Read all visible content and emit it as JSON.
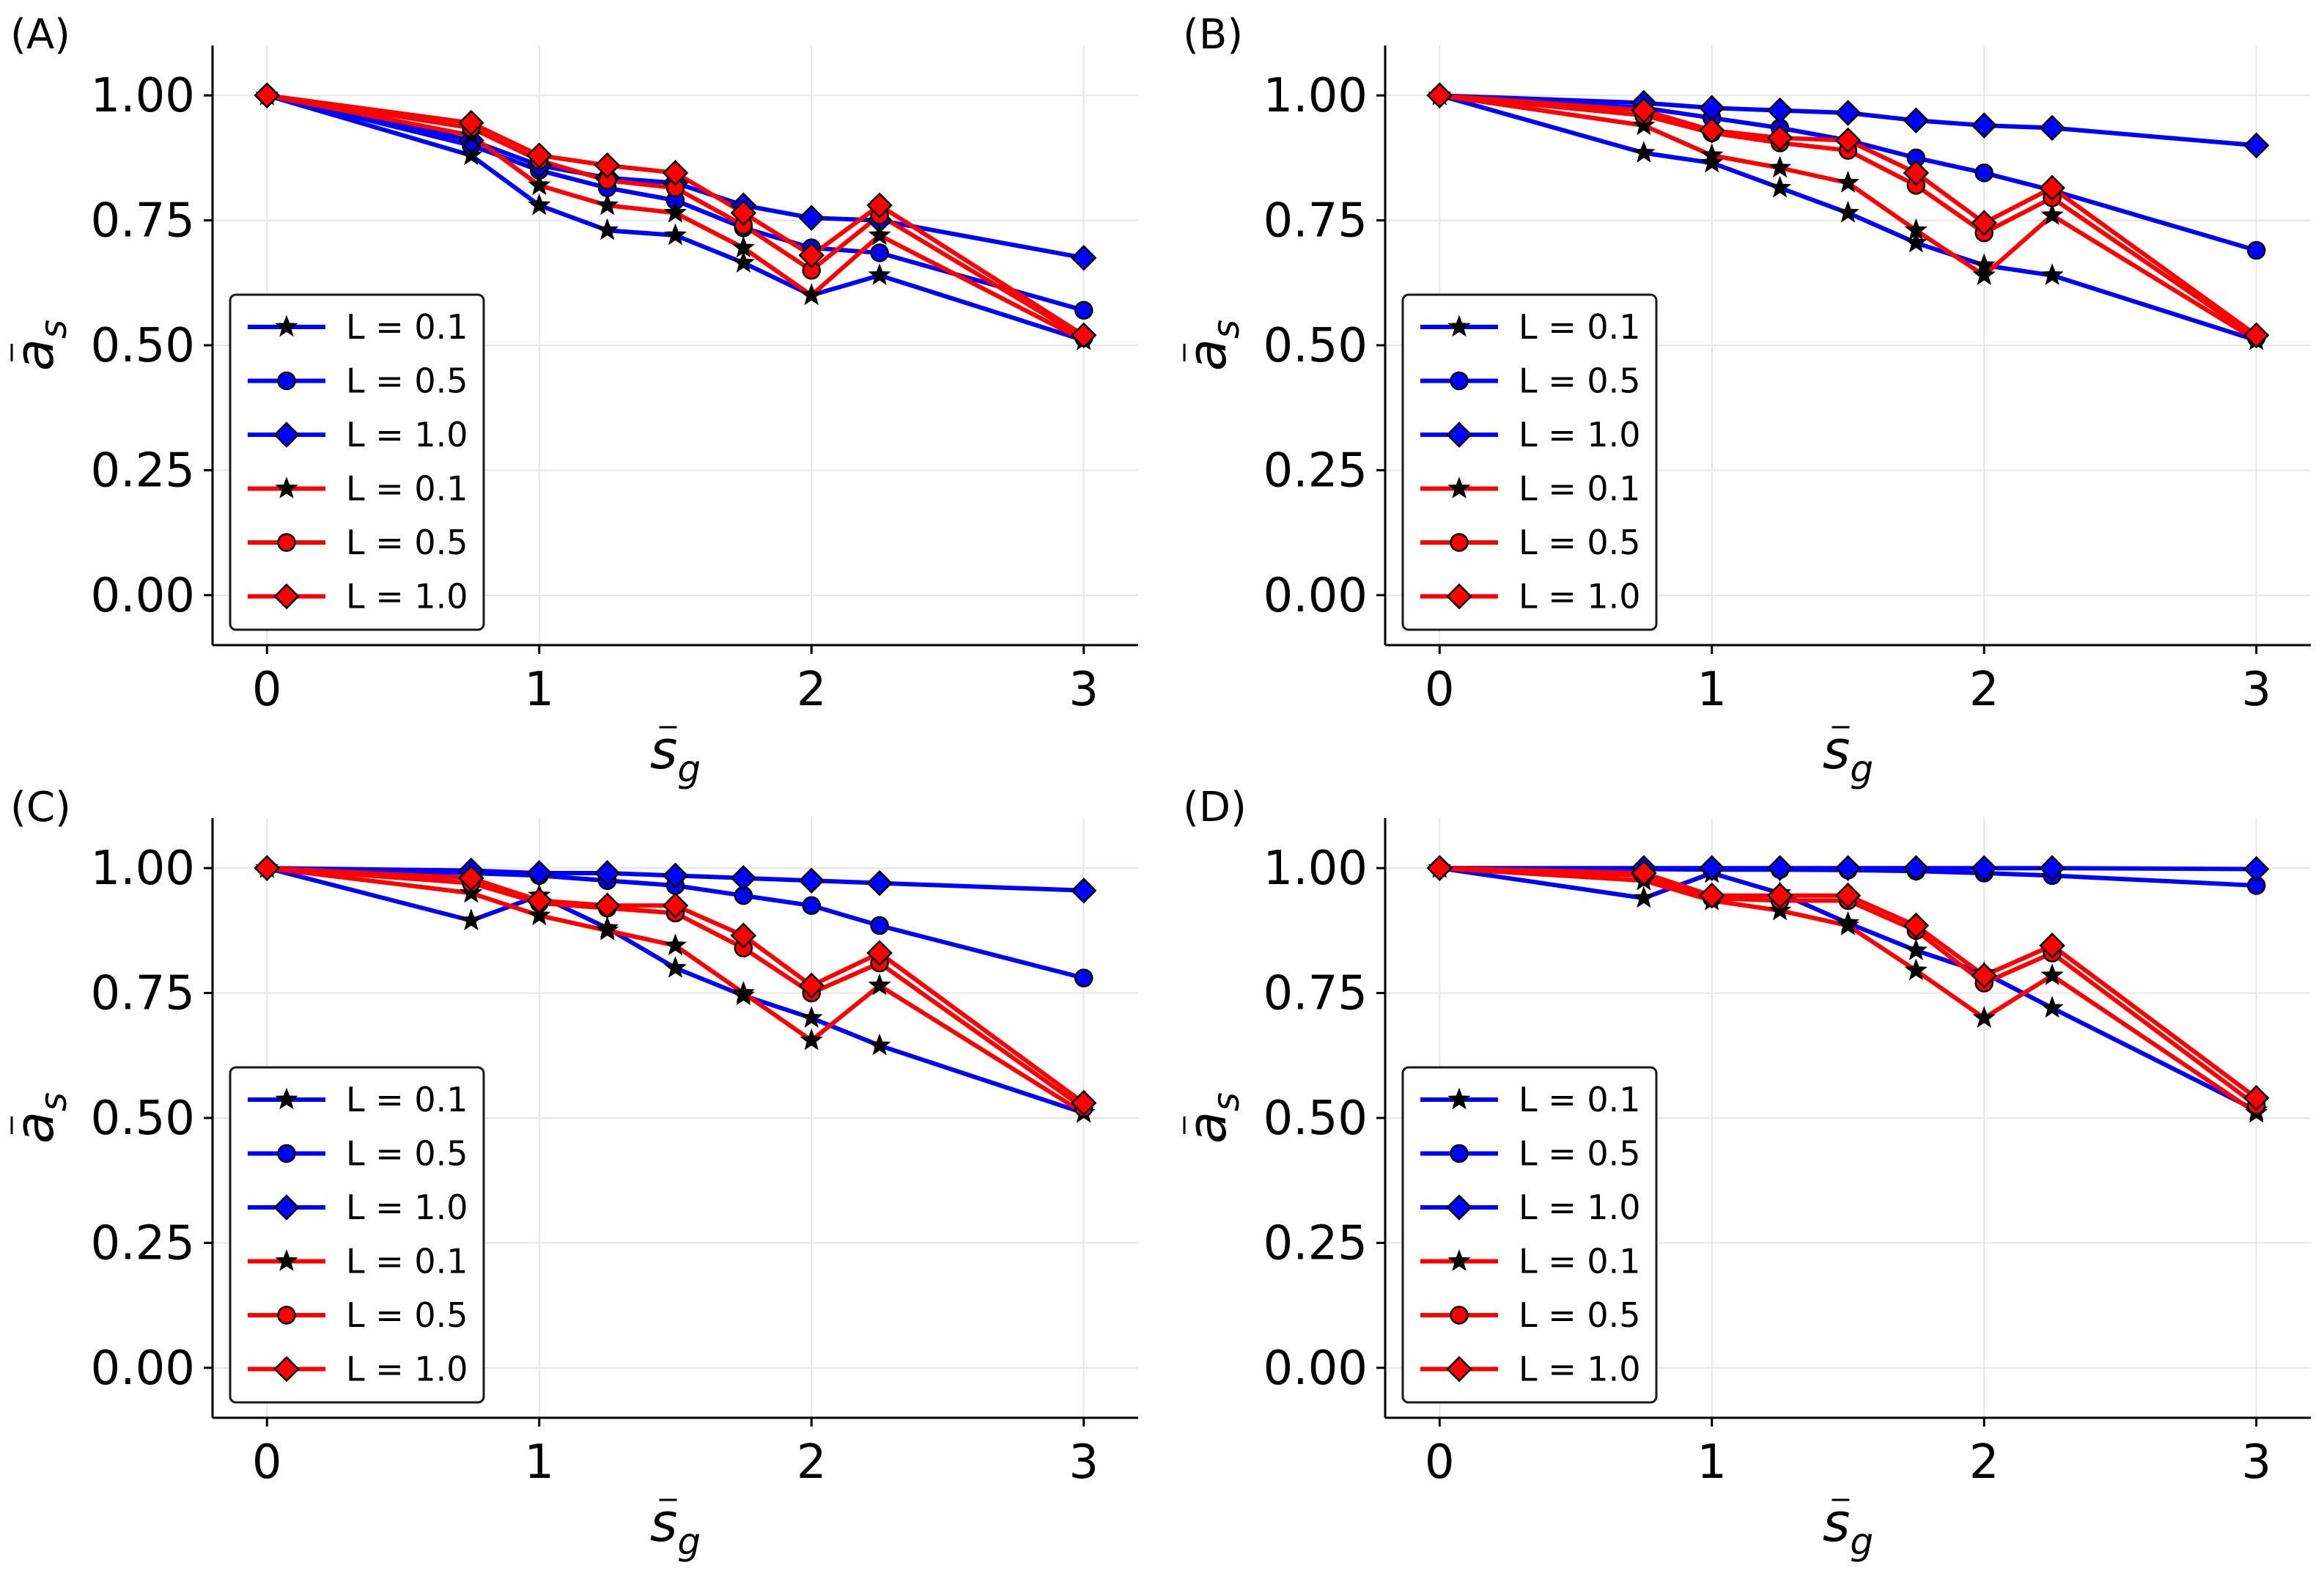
{
  "figure": {
    "colors": {
      "blue": "#0000ff",
      "red": "#ff0000",
      "grid": "#e6e6e6",
      "axis": "#000000",
      "legend_border": "#1a1a1a"
    }
  },
  "chart_data": [
    {
      "panel": "(A)",
      "type": "line",
      "xlabel": {
        "base": "s",
        "sub": "g"
      },
      "ylabel": {
        "base": "a",
        "sub": "s"
      },
      "xlim": [
        -0.2,
        3.2
      ],
      "ylim": [
        -0.1,
        1.1
      ],
      "xticks": [
        {
          "v": 0,
          "label": "0"
        },
        {
          "v": 1,
          "label": "1"
        },
        {
          "v": 2,
          "label": "2"
        },
        {
          "v": 3,
          "label": "3"
        }
      ],
      "yticks": [
        {
          "v": 0,
          "label": "0.00"
        },
        {
          "v": 0.25,
          "label": "0.25"
        },
        {
          "v": 0.5,
          "label": "0.50"
        },
        {
          "v": 0.75,
          "label": "0.75"
        },
        {
          "v": 1,
          "label": "1.00"
        }
      ],
      "grid": true,
      "legend_position": "lower-left",
      "x": [
        0,
        0.75,
        1,
        1.25,
        1.5,
        1.75,
        2,
        2.25,
        3
      ],
      "series": [
        {
          "name": "L = 0.1",
          "color": "blue",
          "marker": "star",
          "values": [
            1.0,
            0.88,
            0.78,
            0.73,
            0.72,
            0.665,
            0.6,
            0.64,
            0.51
          ]
        },
        {
          "name": "L = 0.5",
          "color": "blue",
          "marker": "circle",
          "values": [
            1.0,
            0.9,
            0.85,
            0.815,
            0.79,
            0.735,
            0.695,
            0.685,
            0.57
          ]
        },
        {
          "name": "L = 1.0",
          "color": "blue",
          "marker": "diamond",
          "values": [
            1.0,
            0.91,
            0.86,
            0.835,
            0.825,
            0.78,
            0.755,
            0.75,
            0.675
          ]
        },
        {
          "name": "L = 0.1",
          "color": "red",
          "marker": "star",
          "values": [
            1.0,
            0.92,
            0.82,
            0.78,
            0.765,
            0.695,
            0.6,
            0.72,
            0.51
          ]
        },
        {
          "name": "L = 0.5",
          "color": "red",
          "marker": "circle",
          "values": [
            1.0,
            0.935,
            0.87,
            0.83,
            0.815,
            0.74,
            0.65,
            0.76,
            0.515
          ]
        },
        {
          "name": "L = 1.0",
          "color": "red",
          "marker": "diamond",
          "values": [
            1.0,
            0.945,
            0.88,
            0.86,
            0.845,
            0.765,
            0.68,
            0.78,
            0.52
          ]
        }
      ]
    },
    {
      "panel": "(B)",
      "type": "line",
      "xlabel": {
        "base": "s",
        "sub": "g"
      },
      "ylabel": {
        "base": "a",
        "sub": "s"
      },
      "xlim": [
        -0.2,
        3.2
      ],
      "ylim": [
        -0.1,
        1.1
      ],
      "xticks": [
        {
          "v": 0,
          "label": "0"
        },
        {
          "v": 1,
          "label": "1"
        },
        {
          "v": 2,
          "label": "2"
        },
        {
          "v": 3,
          "label": "3"
        }
      ],
      "yticks": [
        {
          "v": 0,
          "label": "0.00"
        },
        {
          "v": 0.25,
          "label": "0.25"
        },
        {
          "v": 0.5,
          "label": "0.50"
        },
        {
          "v": 0.75,
          "label": "0.75"
        },
        {
          "v": 1,
          "label": "1.00"
        }
      ],
      "grid": true,
      "legend_position": "lower-left",
      "x": [
        0,
        0.75,
        1,
        1.25,
        1.5,
        1.75,
        2,
        2.25,
        3
      ],
      "series": [
        {
          "name": "L = 0.1",
          "color": "blue",
          "marker": "star",
          "values": [
            1.0,
            0.885,
            0.865,
            0.815,
            0.765,
            0.705,
            0.66,
            0.64,
            0.51
          ]
        },
        {
          "name": "L = 0.5",
          "color": "blue",
          "marker": "circle",
          "values": [
            1.0,
            0.975,
            0.955,
            0.935,
            0.91,
            0.875,
            0.845,
            0.81,
            0.69
          ]
        },
        {
          "name": "L = 1.0",
          "color": "blue",
          "marker": "diamond",
          "values": [
            1.0,
            0.985,
            0.975,
            0.97,
            0.965,
            0.95,
            0.94,
            0.935,
            0.9
          ]
        },
        {
          "name": "L = 0.1",
          "color": "red",
          "marker": "star",
          "values": [
            1.0,
            0.94,
            0.88,
            0.855,
            0.825,
            0.73,
            0.64,
            0.76,
            0.51
          ]
        },
        {
          "name": "L = 0.5",
          "color": "red",
          "marker": "circle",
          "values": [
            1.0,
            0.96,
            0.925,
            0.905,
            0.89,
            0.82,
            0.725,
            0.795,
            0.515
          ]
        },
        {
          "name": "L = 1.0",
          "color": "red",
          "marker": "diamond",
          "values": [
            1.0,
            0.97,
            0.93,
            0.915,
            0.91,
            0.845,
            0.745,
            0.815,
            0.52
          ]
        }
      ]
    },
    {
      "panel": "(C)",
      "type": "line",
      "xlabel": {
        "base": "s",
        "sub": "g"
      },
      "ylabel": {
        "base": "a",
        "sub": "s"
      },
      "xlim": [
        -0.2,
        3.2
      ],
      "ylim": [
        -0.1,
        1.1
      ],
      "xticks": [
        {
          "v": 0,
          "label": "0"
        },
        {
          "v": 1,
          "label": "1"
        },
        {
          "v": 2,
          "label": "2"
        },
        {
          "v": 3,
          "label": "3"
        }
      ],
      "yticks": [
        {
          "v": 0,
          "label": "0.00"
        },
        {
          "v": 0.25,
          "label": "0.25"
        },
        {
          "v": 0.5,
          "label": "0.50"
        },
        {
          "v": 0.75,
          "label": "0.75"
        },
        {
          "v": 1,
          "label": "1.00"
        }
      ],
      "grid": true,
      "legend_position": "lower-left",
      "x": [
        0,
        0.75,
        1,
        1.25,
        1.5,
        1.75,
        2,
        2.25,
        3
      ],
      "series": [
        {
          "name": "L = 0.1",
          "color": "blue",
          "marker": "star",
          "values": [
            1.0,
            0.895,
            0.945,
            0.88,
            0.8,
            0.745,
            0.7,
            0.645,
            0.51
          ]
        },
        {
          "name": "L = 0.5",
          "color": "blue",
          "marker": "circle",
          "values": [
            1.0,
            0.99,
            0.985,
            0.975,
            0.965,
            0.945,
            0.925,
            0.885,
            0.78
          ]
        },
        {
          "name": "L = 1.0",
          "color": "blue",
          "marker": "diamond",
          "values": [
            1.0,
            0.995,
            0.99,
            0.99,
            0.985,
            0.98,
            0.975,
            0.97,
            0.955
          ]
        },
        {
          "name": "L = 0.1",
          "color": "red",
          "marker": "star",
          "values": [
            1.0,
            0.95,
            0.905,
            0.875,
            0.845,
            0.75,
            0.655,
            0.765,
            0.51
          ]
        },
        {
          "name": "L = 0.5",
          "color": "red",
          "marker": "circle",
          "values": [
            1.0,
            0.97,
            0.93,
            0.92,
            0.91,
            0.84,
            0.75,
            0.81,
            0.52
          ]
        },
        {
          "name": "L = 1.0",
          "color": "red",
          "marker": "diamond",
          "values": [
            1.0,
            0.98,
            0.935,
            0.925,
            0.925,
            0.865,
            0.765,
            0.83,
            0.53
          ]
        }
      ]
    },
    {
      "panel": "(D)",
      "type": "line",
      "xlabel": {
        "base": "s",
        "sub": "g"
      },
      "ylabel": {
        "base": "a",
        "sub": "s"
      },
      "xlim": [
        -0.2,
        3.2
      ],
      "ylim": [
        -0.1,
        1.1
      ],
      "xticks": [
        {
          "v": 0,
          "label": "0"
        },
        {
          "v": 1,
          "label": "1"
        },
        {
          "v": 2,
          "label": "2"
        },
        {
          "v": 3,
          "label": "3"
        }
      ],
      "yticks": [
        {
          "v": 0,
          "label": "0.00"
        },
        {
          "v": 0.25,
          "label": "0.25"
        },
        {
          "v": 0.5,
          "label": "0.50"
        },
        {
          "v": 0.75,
          "label": "0.75"
        },
        {
          "v": 1,
          "label": "1.00"
        }
      ],
      "grid": true,
      "legend_position": "lower-left",
      "x": [
        0,
        0.75,
        1,
        1.25,
        1.5,
        1.75,
        2,
        2.25,
        3
      ],
      "series": [
        {
          "name": "L = 0.1",
          "color": "blue",
          "marker": "star",
          "values": [
            1.0,
            0.94,
            0.99,
            0.95,
            0.89,
            0.835,
            0.79,
            0.72,
            0.515
          ]
        },
        {
          "name": "L = 0.5",
          "color": "blue",
          "marker": "circle",
          "values": [
            1.0,
            0.998,
            0.997,
            0.997,
            0.996,
            0.994,
            0.99,
            0.985,
            0.965
          ]
        },
        {
          "name": "L = 1.0",
          "color": "blue",
          "marker": "diamond",
          "values": [
            1.0,
            1.0,
            1.0,
            1.0,
            1.0,
            1.0,
            1.0,
            1.0,
            0.998
          ]
        },
        {
          "name": "L = 0.1",
          "color": "red",
          "marker": "star",
          "values": [
            1.0,
            0.975,
            0.935,
            0.915,
            0.885,
            0.795,
            0.7,
            0.785,
            0.51
          ]
        },
        {
          "name": "L = 0.5",
          "color": "red",
          "marker": "circle",
          "values": [
            1.0,
            0.985,
            0.94,
            0.935,
            0.935,
            0.875,
            0.77,
            0.83,
            0.525
          ]
        },
        {
          "name": "L = 1.0",
          "color": "red",
          "marker": "diamond",
          "values": [
            1.0,
            0.99,
            0.945,
            0.945,
            0.945,
            0.885,
            0.785,
            0.845,
            0.54
          ]
        }
      ]
    }
  ]
}
